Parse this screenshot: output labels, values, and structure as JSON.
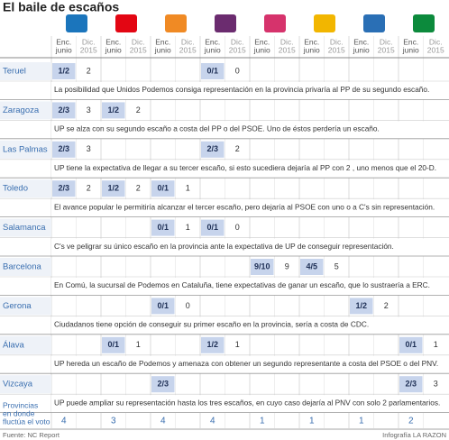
{
  "title": "El baile de escaños",
  "parties": [
    {
      "color": "#1b75bc"
    },
    {
      "color": "#e30613"
    },
    {
      "color": "#f08a24"
    },
    {
      "color": "#6b2c6f"
    },
    {
      "color": "#d6336c"
    },
    {
      "color": "#f2b600"
    },
    {
      "color": "#2a6fb5"
    },
    {
      "color": "#0c8a3c"
    }
  ],
  "subheaders": {
    "enc": [
      "Enc.",
      "junio"
    ],
    "dic": [
      "Dic.",
      "2015"
    ]
  },
  "rows": [
    {
      "name": "Teruel",
      "cells": [
        [
          "1/2",
          2
        ],
        null,
        null,
        [
          "0/1",
          0
        ],
        null,
        null,
        null,
        null
      ],
      "comment": "La posibilidad que Unidos Podemos consiga representación en la provincia privaría al PP de su segundo escaño."
    },
    {
      "name": "Zaragoza",
      "cells": [
        [
          "2/3",
          3
        ],
        [
          "1/2",
          2
        ],
        null,
        null,
        null,
        null,
        null,
        null
      ],
      "comment": "UP se alza con su segundo escaño a costa del PP o del PSOE. Uno de éstos perdería un escaño."
    },
    {
      "name": "Las Palmas",
      "cells": [
        [
          "2/3",
          3
        ],
        null,
        null,
        [
          "2/3",
          2
        ],
        null,
        null,
        null,
        null
      ],
      "comment": "UP tiene la expectativa de llegar a su tercer escaño, si esto sucediera dejaría al PP con 2 , uno menos que el 20-D."
    },
    {
      "name": "Toledo",
      "cells": [
        [
          "2/3",
          2
        ],
        [
          "1/2",
          2
        ],
        [
          "0/1",
          1
        ],
        null,
        null,
        null,
        null,
        null
      ],
      "comment": "El avance popular le permitiría alcanzar el tercer escaño, pero dejaría al PSOE con uno o a C's sin representación."
    },
    {
      "name": "Salamanca",
      "cells": [
        null,
        null,
        [
          "0/1",
          1
        ],
        [
          "0/1",
          0
        ],
        null,
        null,
        null,
        null
      ],
      "comment": "C's ve peligrar su único escaño en la provincia ante la expectativa de UP de conseguir representación."
    },
    {
      "name": "Barcelona",
      "cells": [
        null,
        null,
        null,
        null,
        [
          "9/10",
          9
        ],
        [
          "4/5",
          5
        ],
        null,
        null
      ],
      "comment": "En Comú, la sucursal de Podemos en Cataluña, tiene expectativas de ganar un escaño, que lo sustraería a ERC."
    },
    {
      "name": "Gerona",
      "cells": [
        null,
        null,
        [
          "0/1",
          0
        ],
        null,
        null,
        null,
        [
          "1/2",
          2
        ],
        null
      ],
      "comment": "Ciudadanos tiene opción de conseguir su primer escaño en la provincia, sería a costa de CDC."
    },
    {
      "name": "Álava",
      "cells": [
        null,
        [
          "0/1",
          1
        ],
        null,
        [
          "1/2",
          1
        ],
        null,
        null,
        null,
        [
          "0/1",
          1
        ]
      ],
      "comment": "UP hereda un escaño de Podemos y amenaza con obtener un segundo representante a costa del PSOE o del PNV."
    },
    {
      "name": "Vizcaya",
      "cells": [
        null,
        null,
        [
          "2/3",
          null
        ],
        null,
        null,
        null,
        null,
        [
          "2/3",
          3
        ]
      ],
      "comment": "UP puede ampliar su representación hasta los tres escaños, en cuyo caso dejaría al PNV con solo 2 parlamentarios."
    }
  ],
  "summary": {
    "label": [
      "Provincias",
      "en donde",
      "fluctúa el voto"
    ],
    "values": [
      4,
      3,
      4,
      4,
      1,
      1,
      1,
      2
    ]
  },
  "footer": {
    "source": "Fuente: NC Report",
    "credit": "Infografía LA RAZON"
  }
}
